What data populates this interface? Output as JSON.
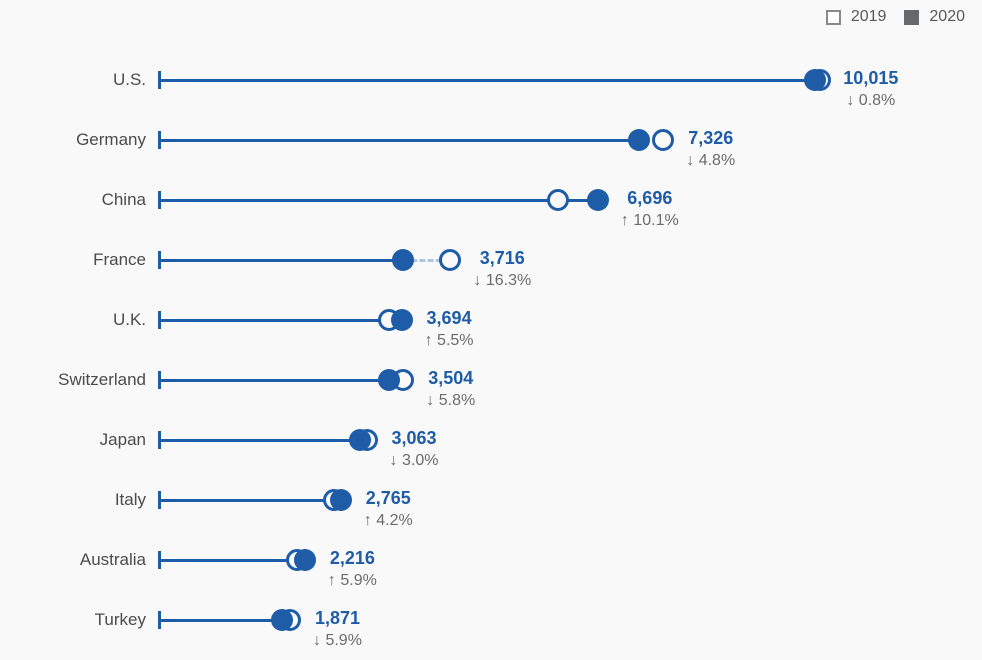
{
  "legend": {
    "items": [
      {
        "label": "2019",
        "swatch": "open-square"
      },
      {
        "label": "2020",
        "swatch": "filled-square"
      }
    ]
  },
  "colors": {
    "accent_blue": "#1e5ca8",
    "dash_connector": "#a9c5e3",
    "category_text": "#4b4b4b",
    "change_text": "#6b6b6b",
    "legend_text": "#58585a",
    "legend_filled_swatch": "#66686c",
    "legend_open_swatch_border": "#898989",
    "background": "#f9f9f9"
  },
  "chart_data": {
    "type": "scatter",
    "subtype": "horizontal-dumbbell-dot-plot",
    "title": "",
    "xlabel": "",
    "ylabel": "",
    "grid": false,
    "legend_position": "top-right",
    "xlim": [
      0,
      11200
    ],
    "categories": [
      "U.S.",
      "Germany",
      "China",
      "France",
      "U.K.",
      "Switzerland",
      "Japan",
      "Italy",
      "Australia",
      "Turkey"
    ],
    "series": [
      {
        "name": "2019",
        "marker": "open-circle",
        "values_estimated": true,
        "values": [
          10096,
          7695,
          6082,
          4440,
          3501,
          3720,
          3158,
          2654,
          2093,
          1988
        ]
      },
      {
        "name": "2020",
        "marker": "filled-circle",
        "values_estimated": false,
        "values": [
          10015,
          7326,
          6696,
          3716,
          3694,
          3504,
          3063,
          2765,
          2216,
          1871
        ]
      }
    ],
    "value_labels": [
      "10,015",
      "7,326",
      "6,696",
      "3,716",
      "3,694",
      "3,504",
      "3,063",
      "2,765",
      "2,216",
      "1,871"
    ],
    "change_labels": [
      "↓ 0.8%",
      "↓ 4.8%",
      "↑ 10.1%",
      "↓ 16.3%",
      "↑ 5.5%",
      "↓ 5.8%",
      "↓ 3.0%",
      "↑ 4.2%",
      "↑ 5.9%",
      "↓ 5.9%"
    ],
    "change_directions": [
      "down",
      "down",
      "up",
      "down",
      "up",
      "down",
      "down",
      "up",
      "up",
      "down"
    ]
  }
}
